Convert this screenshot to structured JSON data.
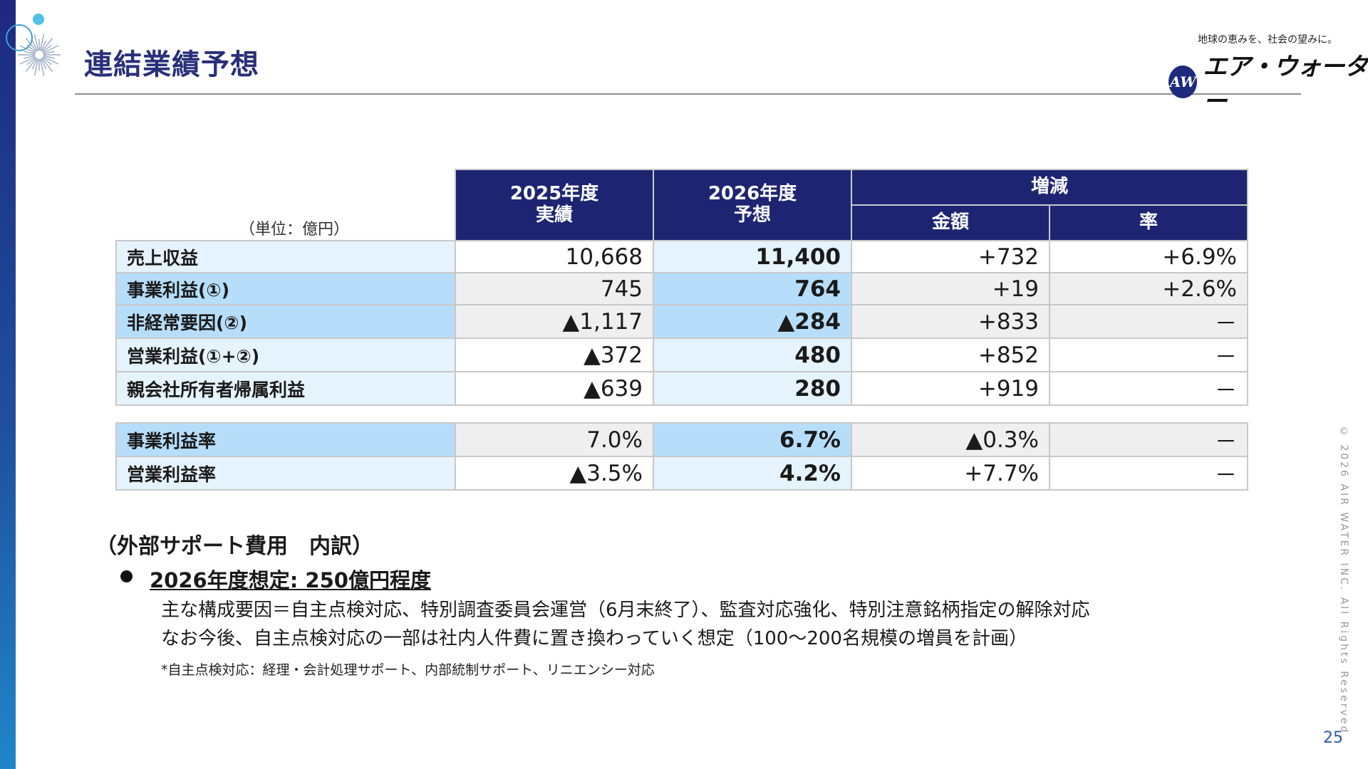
{
  "header": {
    "title": "連結業績予想",
    "tagline": "地球の恵みを、社会の望みに。",
    "logo_mark": "AW",
    "logo_text": "エア・ウォーター"
  },
  "table": {
    "unit": "（単位：億円）",
    "col_2025": "2025年度\n実績",
    "col_2026": "2026年度\n予想",
    "col_change": "増減",
    "col_amount": "金額",
    "col_rate": "率",
    "rows": [
      {
        "label": "売上収益",
        "v2025": "10,668",
        "v2026": "11,400",
        "amount": "+732",
        "rate": "+6.9%"
      },
      {
        "label": "事業利益(①)",
        "v2025": "745",
        "v2026": "764",
        "amount": "+19",
        "rate": "+2.6%"
      },
      {
        "label": "非経常要因(②)",
        "v2025": "▲1,117",
        "v2026": "▲284",
        "amount": "+833",
        "rate": "－"
      },
      {
        "label": "営業利益(①+②)",
        "v2025": "▲372",
        "v2026": "480",
        "amount": "+852",
        "rate": "－"
      },
      {
        "label": "親会社所有者帰属利益",
        "v2025": "▲639",
        "v2026": "280",
        "amount": "+919",
        "rate": "－"
      }
    ],
    "ratio_rows": [
      {
        "label": "事業利益率",
        "v2025": "7.0%",
        "v2026": "6.7%",
        "amount": "▲0.3%",
        "rate": "－"
      },
      {
        "label": "営業利益率",
        "v2025": "▲3.5%",
        "v2026": "4.2%",
        "amount": "+7.7%",
        "rate": "－"
      }
    ]
  },
  "notes": {
    "heading": "（外部サポート費用　内訳）",
    "bullet_title": "2026年度想定: 250億円程度",
    "line1": "主な構成要因＝自主点検対応、特別調査委員会運営（6月末終了）、監査対応強化、特別注意銘柄指定の解除対応",
    "line2": "なお今後、自主点検対応の一部は社内人件費に置き換わっていく想定（100～200名規模の増員を計画）",
    "footnote": "*自主点検対応：経理・会計処理サポート、内部統制サポート、リニエンシー対応"
  },
  "footer": {
    "copyright": "© 2026 AIR WATER INC. All Rights Reserved.",
    "page_number": "25"
  },
  "colors": {
    "header_navy": "#1d2573",
    "title_navy": "#28307a",
    "label_light_blue": "#e5f3fd",
    "highlight_blue": "#b6defa",
    "row_grey": "#efefef"
  }
}
